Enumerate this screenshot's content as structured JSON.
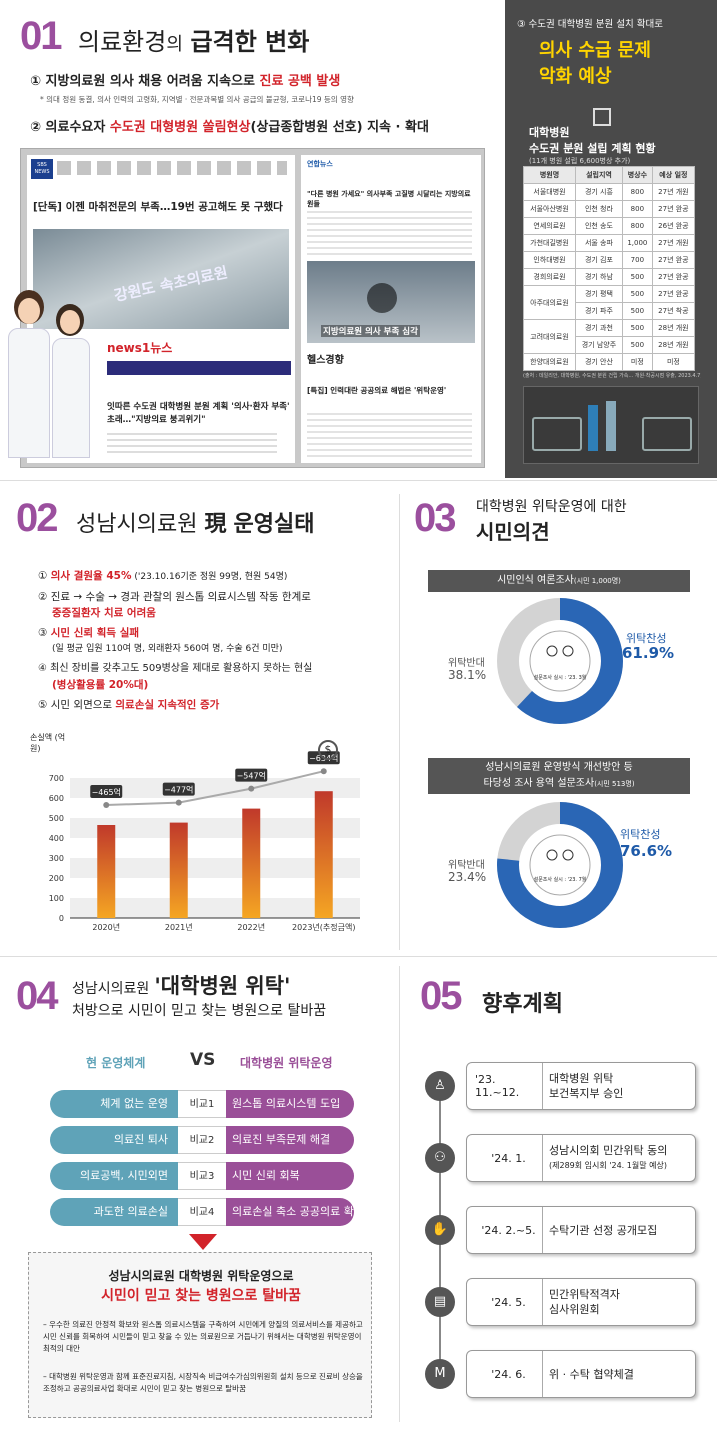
{
  "s1": {
    "num": "01",
    "title_a": "의료환경",
    "title_b": "의",
    "title_c": "급격한 변화",
    "p1_a": "① 지방의료원 의사 채용 어려움 지속으로 ",
    "p1_b": "진료 공백 발생",
    "p1_note": "* 의대 정원 동결, 의사 인력의 고령화, 지역별 · 전문과목별 의사 공급의 불균형, 코로나19 등의 영향",
    "p2_a": "② 의료수요자 ",
    "p2_b": "수도권 대형병원 쏠림현상",
    "p2_c": "(상급종합병원 선호) 지속 · 확대",
    "news1_logo": "SBS NEWS",
    "news1_headline": "[단독] 이젠 마취전문의 부족…19번 공고해도 못 구했다",
    "news1_sign": "강원도 속초의료원",
    "news2_logo": "news1뉴스",
    "news2_headline": "잇따른 수도권 대학병원 분원 계획 '의사·환자 부족' 초래…\"지방의료 붕괴위기\"",
    "news3_logo": "연합뉴스",
    "news3_headline": "\"다른 병원 가세요\" 의사부족 고질병 시달리는 지방의료원들",
    "news3_caption": "지방의료원 의사 부족 심각",
    "news4_logo": "헬스경향",
    "news4_headline": "[특집] 인력대란 공공의료 해법은 '위탁운영'"
  },
  "side": {
    "label": "③ 수도권 대학병원 분원 설치 확대로",
    "headline_1": "의사 수급 문제",
    "headline_2": "악화 예상",
    "table_title_1": "대학병원",
    "table_title_2": "수도권 분원 설립 계획 현황",
    "table_sub": "(11개 병원 설립 6,600병상 추가)",
    "headers": [
      "병원명",
      "설립지역",
      "병상수",
      "예상 일정"
    ],
    "rows": [
      [
        "서울대병원",
        "경기 시흥",
        "800",
        "27년 개원"
      ],
      [
        "서울아산병원",
        "인천 청라",
        "800",
        "27년 완공"
      ],
      [
        "연세의료원",
        "인천 송도",
        "800",
        "26년 완공"
      ],
      [
        "가천대길병원",
        "서울 송파",
        "1,000",
        "27년 개원"
      ],
      [
        "인하대병원",
        "경기 김포",
        "700",
        "27년 완공"
      ],
      [
        "경희의료원",
        "경기 하남",
        "500",
        "27년 완공"
      ],
      [
        "아주대의료원",
        "경기 평택",
        "500",
        "27년 완공"
      ],
      [
        "",
        "경기 파주",
        "500",
        "27년 착공"
      ],
      [
        "고려대의료원",
        "경기 과천",
        "500",
        "28년 개원"
      ],
      [
        "",
        "경기 남양주",
        "500",
        "28년 개원"
      ],
      [
        "한양대의료원",
        "경기 안산",
        "미정",
        "미정"
      ]
    ],
    "source": "(출처 : 데일리안, 대학병원, 수도권 분원 건립 가속… 개원·착공시점 유출, 2023.4.7)"
  },
  "s2": {
    "num": "02",
    "title_a": "성남시의료원",
    "title_b": "現",
    "title_c": "운영실태",
    "i1_a": "① ",
    "i1_b": "의사 결원율 45%",
    "i1_c": " ('23.10.16기준 정원 99명, 현원 54명)",
    "i2_a": "② 진료 → 수술 → 경과 관찰의 원스톱 의료시스템 작동 한계로",
    "i2_b": "중증질환자 치료 어려움",
    "i3_a": "③ ",
    "i3_b": "시민 신뢰 획득 실패",
    "i3_c": "(일 평균 입원 110여 명, 외래환자 560여 명, 수술 6건 미만)",
    "i4_a": "④ 최신 장비를 갖추고도 509병상을 제대로 활용하지 못하는 현실",
    "i4_b": "(병상활용률 20%대)",
    "i5_a": "⑤ 시민 외면으로 ",
    "i5_b": "의료손실 지속적인 증가"
  },
  "chart_data": {
    "type": "bar",
    "title": "",
    "ylabel": "손실액 (억원)",
    "categories": [
      "2020년",
      "2021년",
      "2022년",
      "2023년(추정금액)"
    ],
    "values": [
      465,
      477,
      547,
      634
    ],
    "data_labels": [
      "−465억",
      "−477억",
      "−547억",
      "−634억"
    ],
    "ylim": [
      0,
      700
    ],
    "yticks": [
      "0",
      "100",
      "200",
      "300",
      "400",
      "500",
      "600",
      "700"
    ]
  },
  "s3": {
    "num": "03",
    "title_a": "대학병원 위탁운영에 대한",
    "title_b": "시민의견",
    "survey1": {
      "title": "시민인식 여론조사",
      "sub": "(시민 1,000명)",
      "agree_label": "위탁찬성",
      "agree": "61.9%",
      "disagree_label": "위탁반대",
      "disagree": "38.1%",
      "date": "설문조사 실시 : '23. 3월",
      "agree_value": 61.9
    },
    "survey2": {
      "title_1": "성남시의료원 운영방식 개선방안 등",
      "title_2": "타당성 조사 용역 설문조사",
      "sub": "(시민 513명)",
      "agree_label": "위탁찬성",
      "agree": "76.6%",
      "disagree_label": "위탁반대",
      "disagree": "23.4%",
      "date": "설문조사 실시 : '23. 7월",
      "agree_value": 76.6
    }
  },
  "s4": {
    "num": "04",
    "title_a": "성남시의료원",
    "title_b": "'대학병원 위탁'",
    "title_c": "처방으로 시민이 믿고 찾는 병원으로 탈바꿈",
    "left_head": "현 운영체계",
    "vs": "VS",
    "right_head": "대학병원 위탁운영",
    "rows": [
      {
        "left": "체계 없는 운영",
        "mid": "비교1",
        "right": "원스톱 의료시스템 도입"
      },
      {
        "left": "의료진 퇴사",
        "mid": "비교2",
        "right": "의료진 부족문제 해결"
      },
      {
        "left": "의료공백, 시민외면",
        "mid": "비교3",
        "right": "시민 신뢰 회복"
      },
      {
        "left": "과도한 의료손실",
        "mid": "비교4",
        "right": "의료손실 축소 공공의료 확대"
      }
    ],
    "box_title_1": "성남시의료원 대학병원 위탁운영으로",
    "box_title_2": "시민이 믿고 찾는 병원으로 탈바꿈",
    "bullet1": "– 우수한 의료진 안정적 확보와 원스톱 의료시스템을 구축하여 시민에게 양질의 의료서비스를 제공하고 시민 신뢰를 회복하여 시민들이 믿고 찾을 수 있는 의료원으로 거듭나기 위해서는 대학병원 위탁운영이 최적의 대안",
    "bullet2": "– 대학병원 위탁운영과 함께 표준진료지침, 시장직속 비급여수가심의위원회 설치 등으로 진료비 상승을 조정하고 공공의료사업 확대로 시민이 믿고 찾는 병원으로 탈바꿈"
  },
  "s5": {
    "num": "05",
    "title": "향후계획",
    "items": [
      {
        "date": "'23. 11.~12.",
        "line1": "대학병원 위탁",
        "line2": "보건복지부 승인",
        "icon": "podium-icon"
      },
      {
        "date": "'24. 1.",
        "line1": "성남시의회 민간위탁 동의",
        "line2": "(제289회 임시회 '24. 1월말 예상)",
        "icon": "people-icon"
      },
      {
        "date": "'24. 2.~5.",
        "line1": "수탁기관 선정 공개모집",
        "line2": "",
        "icon": "handshake-icon"
      },
      {
        "date": "'24. 5.",
        "line1": "민간위탁적격자",
        "line2": "심사위원회",
        "icon": "document-icon"
      },
      {
        "date": "'24. 6.",
        "line1": "위 · 수탁 협약체결",
        "line2": "",
        "icon": "contract-icon"
      }
    ]
  },
  "colors": {
    "purple": "#9b4f9e",
    "red": "#d2232a",
    "teal": "#5fa3b8",
    "blue": "#1e5aa8",
    "dark": "#4a4a4a"
  }
}
